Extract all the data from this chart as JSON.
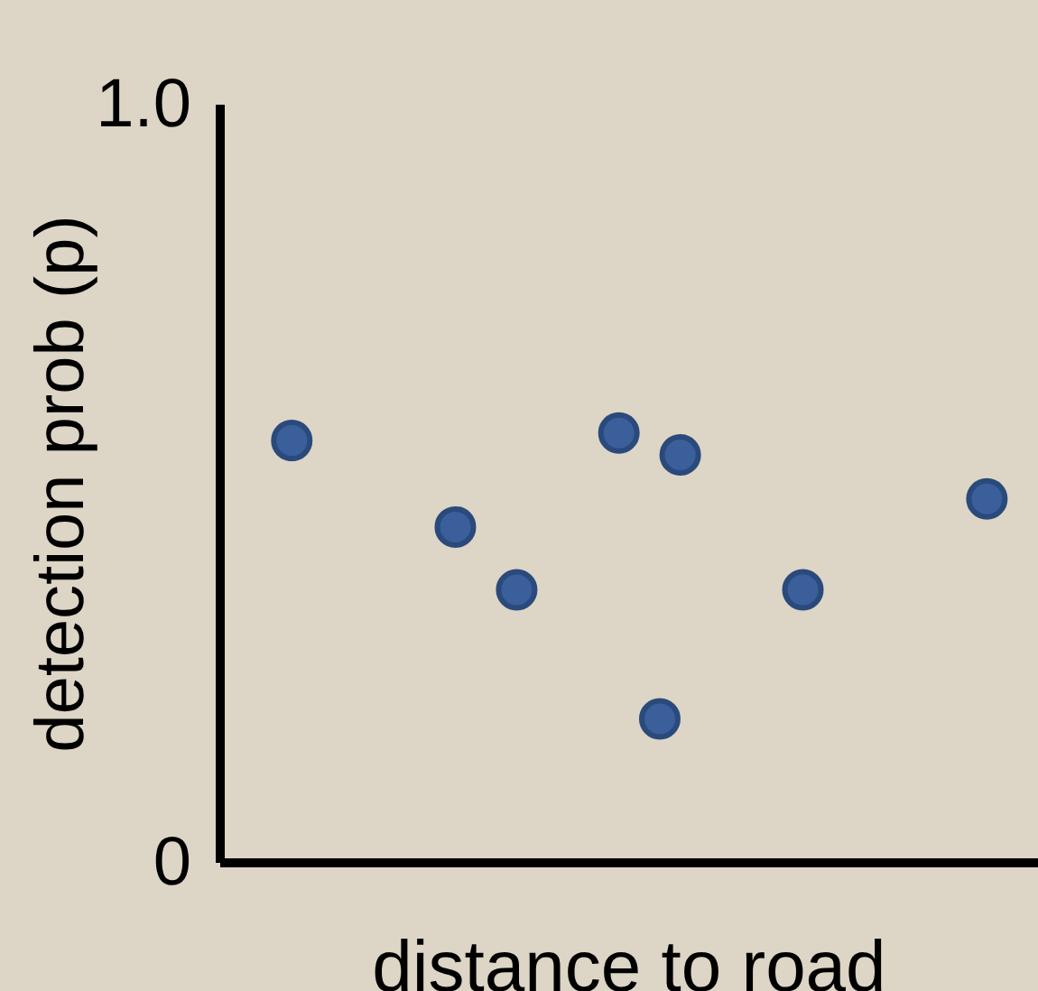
{
  "chart_data": {
    "type": "scatter",
    "xlabel": "distance to road",
    "ylabel": "detection prob (p)",
    "categories": [
      null,
      null,
      null,
      null,
      null,
      null,
      null,
      null,
      null,
      null,
      null,
      null,
      null,
      null,
      null,
      null,
      null,
      null,
      null,
      null,
      null,
      null,
      null,
      null,
      null,
      null,
      null,
      null,
      null,
      null,
      null,
      null,
      null,
      null,
      null,
      null,
      null,
      null,
      null,
      null
    ],
    "values": [
      null,
      null,
      null,
      0.557,
      null,
      null,
      null,
      null,
      null,
      null,
      null,
      0.443,
      null,
      null,
      0.36,
      null,
      null,
      null,
      null,
      0.567,
      null,
      0.19,
      0.538,
      null,
      null,
      null,
      null,
      null,
      0.36,
      null,
      null,
      null,
      null,
      null,
      null,
      null,
      null,
      0.48,
      null,
      null
    ],
    "color": "#3a5f9a",
    "ylim": [
      0,
      1
    ],
    "yticks": [
      0,
      {
        "value": 1,
        "label": "1.0"
      }
    ],
    "tick_labels": "y",
    "grid": false,
    "legend": false,
    "marker": "circle"
  }
}
